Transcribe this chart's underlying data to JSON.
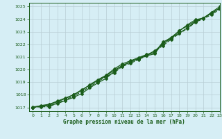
{
  "title": "Graphe pression niveau de la mer (hPa)",
  "background_color": "#d6eef5",
  "plot_bg_color": "#d6eef5",
  "grid_color": "#b8cdd4",
  "line_color": "#1a5c1a",
  "xlim": [
    -0.5,
    23
  ],
  "ylim": [
    1016.7,
    1025.3
  ],
  "yticks": [
    1017,
    1018,
    1019,
    1020,
    1021,
    1022,
    1023,
    1024,
    1025
  ],
  "xticks": [
    0,
    1,
    2,
    3,
    4,
    5,
    6,
    7,
    8,
    9,
    10,
    11,
    12,
    13,
    14,
    15,
    16,
    17,
    18,
    19,
    20,
    21,
    22,
    23
  ],
  "hours": [
    0,
    1,
    2,
    3,
    4,
    5,
    6,
    7,
    8,
    9,
    10,
    11,
    12,
    13,
    14,
    15,
    16,
    17,
    18,
    19,
    20,
    21,
    22,
    23
  ],
  "line1": [
    1017.05,
    1017.1,
    1017.15,
    1017.3,
    1017.55,
    1017.8,
    1018.1,
    1018.55,
    1018.95,
    1019.3,
    1019.85,
    1020.35,
    1020.6,
    1020.85,
    1021.1,
    1021.25,
    1022.15,
    1022.55,
    1023.05,
    1023.55,
    1023.95,
    1024.1,
    1024.55,
    1025.0
  ],
  "line2": [
    1017.0,
    1017.15,
    1017.25,
    1017.5,
    1017.75,
    1018.0,
    1018.35,
    1018.8,
    1019.2,
    1019.55,
    1020.05,
    1020.45,
    1020.7,
    1020.95,
    1021.2,
    1021.35,
    1022.2,
    1022.45,
    1023.1,
    1023.45,
    1023.85,
    1024.1,
    1024.5,
    1024.85
  ],
  "line3": [
    1017.0,
    1017.05,
    1017.05,
    1017.35,
    1017.6,
    1017.9,
    1018.25,
    1018.65,
    1019.05,
    1019.45,
    1019.75,
    1020.25,
    1020.5,
    1020.8,
    1021.1,
    1021.45,
    1021.9,
    1022.4,
    1022.85,
    1023.25,
    1023.75,
    1024.05,
    1024.35,
    1024.8
  ],
  "line4": [
    1017.0,
    1017.1,
    1017.2,
    1017.45,
    1017.7,
    1018.0,
    1018.4,
    1018.75,
    1019.15,
    1019.5,
    1019.95,
    1020.3,
    1020.6,
    1020.9,
    1021.15,
    1021.5,
    1022.0,
    1022.5,
    1022.9,
    1023.3,
    1023.8,
    1024.1,
    1024.45,
    1024.9
  ]
}
